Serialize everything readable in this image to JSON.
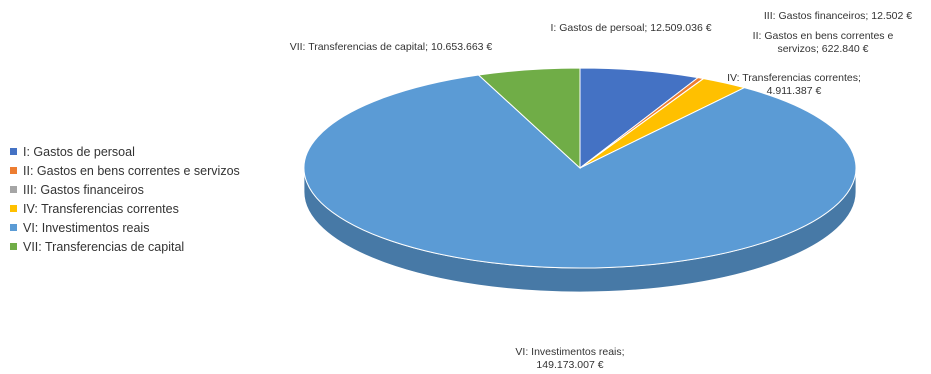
{
  "chart_data": {
    "type": "pie",
    "title": "",
    "categories": [
      "I: Gastos de persoal",
      "II: Gastos en bens correntes e servizos",
      "III: Gastos financeiros",
      "IV: Transferencias correntes",
      "VI: Investimentos reais",
      "VII: Transferencias de capital"
    ],
    "values": [
      12509036,
      622840,
      12502,
      4911387,
      149173007,
      10653663
    ],
    "colors": [
      "#4472c4",
      "#ed7d31",
      "#a5a5a5",
      "#ffc000",
      "#5b9bd5",
      "#70ad47"
    ],
    "data_labels": [
      [
        "I: Gastos de persoal; 12.509.036 €"
      ],
      [
        "II: Gastos en bens correntes e",
        "servizos; 622.840 €"
      ],
      [
        "III: Gastos financeiros; 12.502 €"
      ],
      [
        "IV: Transferencias correntes;",
        "4.911.387 €"
      ],
      [
        "VI: Investimentos reais;",
        "149.173.007 €"
      ],
      [
        "VII: Transferencias de capital; 10.653.663 €"
      ]
    ],
    "legend": {
      "position": "left",
      "entries": [
        "I: Gastos de persoal",
        "II: Gastos en bens correntes e servizos",
        "III: Gastos financeiros",
        "IV: Transferencias correntes",
        "VI: Investimentos reais",
        "VII: Transferencias de capital"
      ]
    },
    "style": "3d"
  }
}
